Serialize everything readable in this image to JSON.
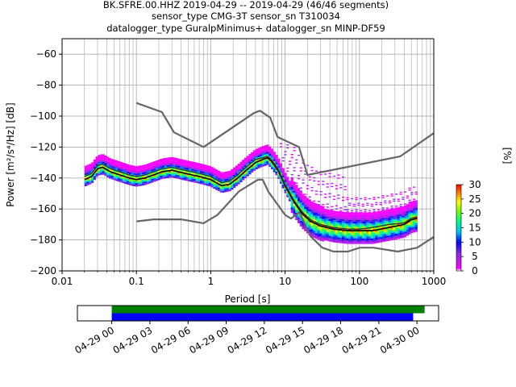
{
  "header": {
    "line1": "BK.SFRE.00.HHZ   2019-04-29 -- 2019-04-29  (46/46 segments)",
    "line2": "sensor_type CMG-3T sensor_sn T310034",
    "line3": "datalogger_type GuralpMinimus+ datalogger_sn MINP-DF59"
  },
  "chart_data": [
    {
      "type": "heatmap",
      "title": "",
      "xlabel": "Period [s]",
      "ylabel": "Power [m²/s⁴/Hz] [dB]",
      "xscale": "log",
      "xlim": [
        0.01,
        1000
      ],
      "ylim": [
        -200,
        -50
      ],
      "xticks": [
        0.01,
        0.1,
        1,
        10,
        100,
        1000
      ],
      "xtick_labels": [
        "0.01",
        "0.1",
        "1",
        "10",
        "100",
        "1000"
      ],
      "yticks": [
        -200,
        -180,
        -160,
        -140,
        -120,
        -100,
        -80,
        -60
      ],
      "ytick_labels": [
        "−200",
        "−180",
        "−160",
        "−140",
        "−120",
        "−100",
        "−80",
        "−60"
      ],
      "grid": true,
      "colorbar": {
        "label": "[%]",
        "ticks": [
          0,
          5,
          10,
          15,
          20,
          25,
          30
        ],
        "tick_labels": [
          "0",
          "5",
          "10",
          "15",
          "20",
          "25",
          "30"
        ],
        "range": [
          0,
          30
        ]
      },
      "series": [
        {
          "role": "high_noise_model",
          "x": [
            0.1,
            0.22,
            0.32,
            0.8,
            3.8,
            4.6,
            6.3,
            7.9,
            15.4,
            20,
            354.8,
            1000
          ],
          "y": [
            -91.5,
            -97.4,
            -110.5,
            -120,
            -98,
            -96.5,
            -101,
            -113.5,
            -120,
            -138,
            -126,
            -111
          ]
        },
        {
          "role": "low_noise_model",
          "x": [
            0.1,
            0.17,
            0.4,
            0.8,
            1.24,
            2.4,
            4.3,
            5,
            6,
            10,
            12,
            15.6,
            21.9,
            31.6,
            45,
            70,
            101,
            154,
            328,
            600,
            1000
          ],
          "y": [
            -168,
            -166.7,
            -166.7,
            -169.2,
            -163.7,
            -148.6,
            -141.1,
            -141.1,
            -149,
            -163.8,
            -166.2,
            -162.1,
            -177.5,
            -185,
            -187.5,
            -187.5,
            -185,
            -185,
            -187.5,
            -185,
            -178
          ]
        },
        {
          "role": "mode",
          "x": [
            0.02,
            0.025,
            0.03,
            0.035,
            0.045,
            0.06,
            0.08,
            0.1,
            0.13,
            0.17,
            0.22,
            0.3,
            0.45,
            0.7,
            1,
            1.4,
            1.8,
            2.3,
            3,
            4,
            5,
            5.8,
            6.5,
            8,
            10,
            13,
            17,
            22,
            30,
            45,
            70,
            100,
            150,
            250,
            400,
            500,
            600
          ],
          "y": [
            -141,
            -139,
            -134,
            -133,
            -136,
            -138,
            -140,
            -141,
            -140,
            -138,
            -136,
            -135,
            -137,
            -139,
            -141,
            -145,
            -144,
            -140,
            -135,
            -130,
            -128,
            -127,
            -129,
            -135,
            -145,
            -155,
            -163,
            -168,
            -171,
            -173,
            -174,
            -174,
            -174,
            -172,
            -170,
            -167,
            -166
          ]
        },
        {
          "role": "mean",
          "x": [
            0.02,
            0.025,
            0.03,
            0.035,
            0.045,
            0.06,
            0.08,
            0.1,
            0.13,
            0.17,
            0.22,
            0.3,
            0.45,
            0.7,
            1,
            1.4,
            1.8,
            2.3,
            3,
            4,
            5,
            5.8,
            6.5,
            8,
            10,
            13,
            17,
            22,
            30,
            45,
            70,
            100,
            150,
            250,
            400,
            500,
            600
          ],
          "y": [
            -139,
            -137,
            -132,
            -131,
            -134,
            -136,
            -138,
            -139,
            -138,
            -136,
            -134,
            -133,
            -135,
            -137,
            -139,
            -143,
            -142,
            -138,
            -133,
            -128,
            -127,
            -126,
            -128,
            -134,
            -144,
            -154,
            -162,
            -167,
            -170,
            -172,
            -173,
            -173,
            -172,
            -170,
            -169,
            -166,
            -165
          ]
        }
      ]
    },
    {
      "type": "timeline",
      "xticks": [
        "04-29 00",
        "04-29 03",
        "04-29 06",
        "04-29 09",
        "04-29 12",
        "04-29 15",
        "04-29 18",
        "04-29 21",
        "04-30 00"
      ],
      "range_hours": [
        -2.7,
        25.7
      ],
      "bars": [
        {
          "role": "data_available",
          "color": "#008000",
          "start_hours": 0,
          "end_hours": 24.6
        },
        {
          "role": "psd_segments",
          "color": "#0000ff",
          "start_hours": 0,
          "end_hours": 23.7
        }
      ]
    }
  ]
}
